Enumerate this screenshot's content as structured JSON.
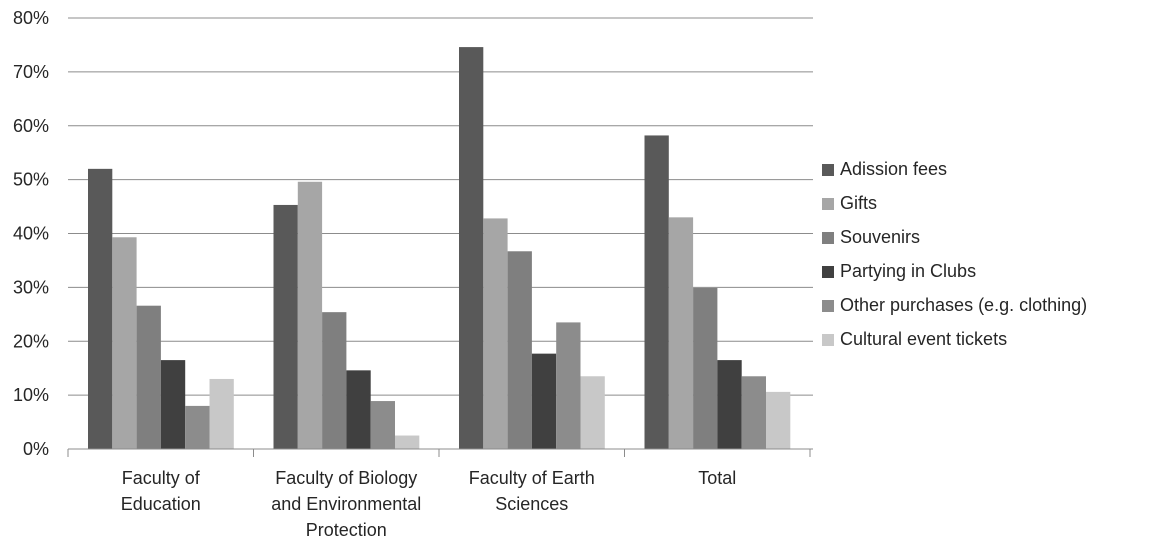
{
  "chart_data": {
    "type": "bar",
    "title": "",
    "xlabel": "",
    "ylabel": "",
    "ylim": [
      0,
      0.8
    ],
    "ytick_step": 0.1,
    "y_tick_labels": [
      "0%",
      "10%",
      "20%",
      "30%",
      "40%",
      "50%",
      "60%",
      "70%",
      "80%"
    ],
    "grid": true,
    "legend_position": "right",
    "categories": [
      [
        "Faculty of",
        "Education"
      ],
      [
        "Faculty of Biology",
        "and Environmental",
        "Protection"
      ],
      [
        "Faculty of Earth",
        "Sciences"
      ],
      [
        "Total"
      ]
    ],
    "series": [
      {
        "name": "Adission fees",
        "color": "#595959",
        "values": [
          0.52,
          0.453,
          0.746,
          0.582
        ]
      },
      {
        "name": "Gifts",
        "color": "#a6a6a6",
        "values": [
          0.393,
          0.496,
          0.428,
          0.43
        ]
      },
      {
        "name": "Souvenirs",
        "color": "#7f7f7f",
        "values": [
          0.266,
          0.254,
          0.367,
          0.299
        ]
      },
      {
        "name": "Partying in Clubs",
        "color": "#404040",
        "values": [
          0.165,
          0.146,
          0.177,
          0.165
        ]
      },
      {
        "name": "Other purchases (e.g. clothing)",
        "color": "#8c8c8c",
        "values": [
          0.08,
          0.089,
          0.235,
          0.135
        ]
      },
      {
        "name": "Cultural event tickets",
        "color": "#c8c8c8",
        "values": [
          0.13,
          0.025,
          0.135,
          0.106
        ]
      }
    ]
  }
}
